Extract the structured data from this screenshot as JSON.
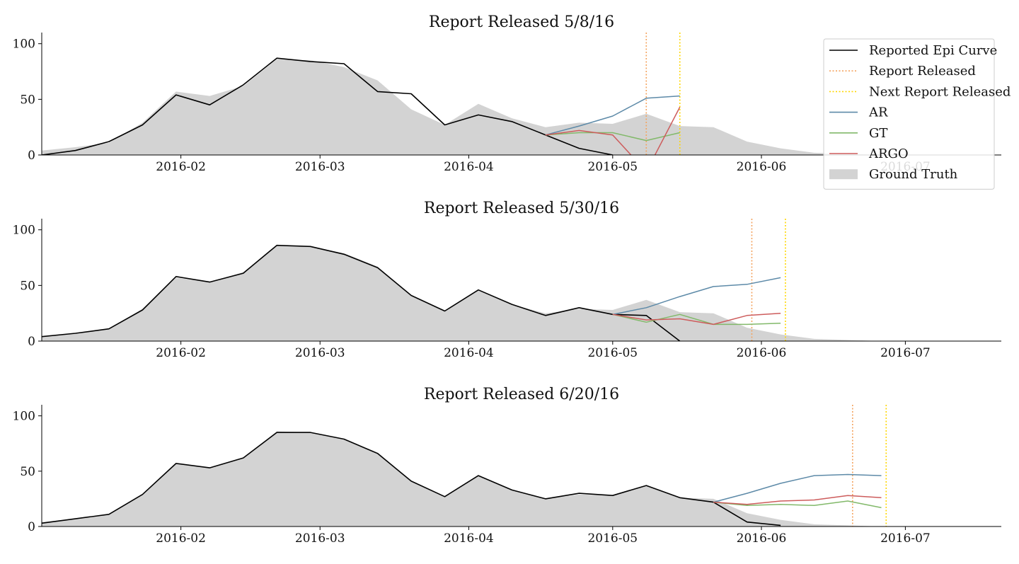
{
  "colors": {
    "epi": "#000000",
    "report": "#f4a460",
    "next": "#ffd700",
    "ar": "#5d8aa8",
    "gt": "#82b96a",
    "argo": "#cd5c5c",
    "truth": "#d3d3d3"
  },
  "legend": {
    "placement": "top-right",
    "items": [
      {
        "key": "epi",
        "label": "Reported Epi Curve",
        "style": "line"
      },
      {
        "key": "report",
        "label": "Report Released",
        "style": "dotted"
      },
      {
        "key": "next",
        "label": "Next Report Released",
        "style": "dotted"
      },
      {
        "key": "ar",
        "label": "AR",
        "style": "line"
      },
      {
        "key": "gt",
        "label": "GT",
        "style": "line"
      },
      {
        "key": "argo",
        "label": "ARGO",
        "style": "line"
      },
      {
        "key": "truth",
        "label": "Ground Truth",
        "style": "patch"
      }
    ]
  },
  "chart_data": [
    {
      "type": "line",
      "title": "Report Released 5/8/16",
      "xlim": [
        "2016-01-03",
        "2016-07-21"
      ],
      "ylim": [
        0,
        110
      ],
      "yticks": [
        0,
        50,
        100
      ],
      "xticks": [
        "2016-02",
        "2016-03",
        "2016-04",
        "2016-05",
        "2016-06",
        "2016-07"
      ],
      "grid": false,
      "report_released": "2016-05-08",
      "next_report_released": "2016-05-15",
      "ground_truth": {
        "x": [
          "2016-01-03",
          "2016-01-10",
          "2016-01-17",
          "2016-01-24",
          "2016-01-31",
          "2016-02-07",
          "2016-02-14",
          "2016-02-21",
          "2016-02-28",
          "2016-03-06",
          "2016-03-13",
          "2016-03-20",
          "2016-03-27",
          "2016-04-03",
          "2016-04-10",
          "2016-04-17",
          "2016-04-24",
          "2016-05-01",
          "2016-05-08",
          "2016-05-15",
          "2016-05-22",
          "2016-05-29",
          "2016-06-05",
          "2016-06-12",
          "2016-06-19",
          "2016-06-26",
          "2016-07-03"
        ],
        "y": [
          4,
          7,
          11,
          29,
          57,
          53,
          62,
          86,
          85,
          79,
          67,
          41,
          27,
          46,
          33,
          25,
          29,
          28,
          37,
          26,
          25,
          12,
          6,
          2,
          1,
          0,
          0
        ]
      },
      "series": [
        {
          "name": "Reported Epi Curve",
          "key": "epi",
          "x": [
            "2016-01-03",
            "2016-01-10",
            "2016-01-17",
            "2016-01-24",
            "2016-01-31",
            "2016-02-07",
            "2016-02-14",
            "2016-02-21",
            "2016-02-28",
            "2016-03-06",
            "2016-03-13",
            "2016-03-20",
            "2016-03-27",
            "2016-04-03",
            "2016-04-10",
            "2016-04-17",
            "2016-04-24",
            "2016-05-01"
          ],
          "y": [
            0,
            4,
            12,
            27,
            54,
            45,
            63,
            87,
            84,
            82,
            57,
            55,
            27,
            36,
            30,
            18,
            6,
            0
          ]
        },
        {
          "name": "AR",
          "key": "ar",
          "x": [
            "2016-04-17",
            "2016-04-24",
            "2016-05-01",
            "2016-05-08",
            "2016-05-15"
          ],
          "y": [
            18,
            26,
            35,
            51,
            53
          ]
        },
        {
          "name": "GT",
          "key": "gt",
          "x": [
            "2016-04-17",
            "2016-04-24",
            "2016-05-01",
            "2016-05-08",
            "2016-05-15"
          ],
          "y": [
            18,
            20,
            20,
            13,
            20
          ]
        },
        {
          "name": "ARGO",
          "key": "argo",
          "x": [
            "2016-04-17",
            "2016-04-24",
            "2016-05-01",
            "2016-05-08",
            "2016-05-15"
          ],
          "y": [
            18,
            22,
            18,
            -15,
            43
          ]
        }
      ]
    },
    {
      "type": "line",
      "title": "Report Released 5/30/16",
      "xlim": [
        "2016-01-03",
        "2016-07-21"
      ],
      "ylim": [
        0,
        110
      ],
      "yticks": [
        0,
        50,
        100
      ],
      "xticks": [
        "2016-02",
        "2016-03",
        "2016-04",
        "2016-05",
        "2016-06",
        "2016-07"
      ],
      "grid": false,
      "report_released": "2016-05-30",
      "next_report_released": "2016-06-06",
      "ground_truth": {
        "x": [
          "2016-01-03",
          "2016-01-10",
          "2016-01-17",
          "2016-01-24",
          "2016-01-31",
          "2016-02-07",
          "2016-02-14",
          "2016-02-21",
          "2016-02-28",
          "2016-03-06",
          "2016-03-13",
          "2016-03-20",
          "2016-03-27",
          "2016-04-03",
          "2016-04-10",
          "2016-04-17",
          "2016-04-24",
          "2016-05-01",
          "2016-05-08",
          "2016-05-15",
          "2016-05-22",
          "2016-05-29",
          "2016-06-05",
          "2016-06-12",
          "2016-06-19",
          "2016-06-26",
          "2016-07-03"
        ],
        "y": [
          4,
          7,
          11,
          29,
          57,
          53,
          62,
          86,
          85,
          79,
          67,
          41,
          27,
          46,
          33,
          25,
          29,
          28,
          37,
          26,
          25,
          12,
          6,
          2,
          1,
          0,
          0
        ]
      },
      "series": [
        {
          "name": "Reported Epi Curve",
          "key": "epi",
          "x": [
            "2016-01-03",
            "2016-01-10",
            "2016-01-17",
            "2016-01-24",
            "2016-01-31",
            "2016-02-07",
            "2016-02-14",
            "2016-02-21",
            "2016-02-28",
            "2016-03-06",
            "2016-03-13",
            "2016-03-20",
            "2016-03-27",
            "2016-04-03",
            "2016-04-10",
            "2016-04-17",
            "2016-04-24",
            "2016-05-01",
            "2016-05-08",
            "2016-05-15"
          ],
          "y": [
            4,
            7,
            11,
            28,
            58,
            53,
            61,
            86,
            85,
            78,
            66,
            41,
            27,
            46,
            33,
            23,
            30,
            24,
            23,
            0
          ]
        },
        {
          "name": "AR",
          "key": "ar",
          "x": [
            "2016-05-01",
            "2016-05-08",
            "2016-05-15",
            "2016-05-22",
            "2016-05-29",
            "2016-06-05"
          ],
          "y": [
            24,
            30,
            40,
            49,
            51,
            57
          ]
        },
        {
          "name": "GT",
          "key": "gt",
          "x": [
            "2016-05-01",
            "2016-05-08",
            "2016-05-15",
            "2016-05-22",
            "2016-05-29",
            "2016-06-05"
          ],
          "y": [
            24,
            17,
            24,
            15,
            15,
            16
          ]
        },
        {
          "name": "ARGO",
          "key": "argo",
          "x": [
            "2016-05-01",
            "2016-05-08",
            "2016-05-15",
            "2016-05-22",
            "2016-05-29",
            "2016-06-05"
          ],
          "y": [
            24,
            19,
            20,
            15,
            23,
            25
          ]
        }
      ]
    },
    {
      "type": "line",
      "title": "Report Released 6/20/16",
      "xlim": [
        "2016-01-03",
        "2016-07-21"
      ],
      "ylim": [
        0,
        110
      ],
      "yticks": [
        0,
        50,
        100
      ],
      "xticks": [
        "2016-02",
        "2016-03",
        "2016-04",
        "2016-05",
        "2016-06",
        "2016-07"
      ],
      "grid": false,
      "report_released": "2016-06-20",
      "next_report_released": "2016-06-27",
      "ground_truth": {
        "x": [
          "2016-01-03",
          "2016-01-10",
          "2016-01-17",
          "2016-01-24",
          "2016-01-31",
          "2016-02-07",
          "2016-02-14",
          "2016-02-21",
          "2016-02-28",
          "2016-03-06",
          "2016-03-13",
          "2016-03-20",
          "2016-03-27",
          "2016-04-03",
          "2016-04-10",
          "2016-04-17",
          "2016-04-24",
          "2016-05-01",
          "2016-05-08",
          "2016-05-15",
          "2016-05-22",
          "2016-05-29",
          "2016-06-05",
          "2016-06-12",
          "2016-06-19",
          "2016-06-26",
          "2016-07-03"
        ],
        "y": [
          4,
          7,
          11,
          29,
          57,
          53,
          62,
          86,
          85,
          79,
          67,
          41,
          27,
          46,
          33,
          25,
          29,
          28,
          37,
          26,
          25,
          12,
          6,
          2,
          1,
          0,
          0
        ]
      },
      "series": [
        {
          "name": "Reported Epi Curve",
          "key": "epi",
          "x": [
            "2016-01-03",
            "2016-01-10",
            "2016-01-17",
            "2016-01-24",
            "2016-01-31",
            "2016-02-07",
            "2016-02-14",
            "2016-02-21",
            "2016-02-28",
            "2016-03-06",
            "2016-03-13",
            "2016-03-20",
            "2016-03-27",
            "2016-04-03",
            "2016-04-10",
            "2016-04-17",
            "2016-04-24",
            "2016-05-01",
            "2016-05-08",
            "2016-05-15",
            "2016-05-22",
            "2016-05-29",
            "2016-06-05"
          ],
          "y": [
            3,
            7,
            11,
            29,
            57,
            53,
            62,
            85,
            85,
            79,
            66,
            41,
            27,
            46,
            33,
            25,
            30,
            28,
            37,
            26,
            22,
            4,
            1
          ]
        },
        {
          "name": "AR",
          "key": "ar",
          "x": [
            "2016-05-22",
            "2016-05-29",
            "2016-06-05",
            "2016-06-12",
            "2016-06-19",
            "2016-06-26"
          ],
          "y": [
            22,
            30,
            39,
            46,
            47,
            46
          ]
        },
        {
          "name": "GT",
          "key": "gt",
          "x": [
            "2016-05-22",
            "2016-05-29",
            "2016-06-05",
            "2016-06-12",
            "2016-06-19",
            "2016-06-26"
          ],
          "y": [
            22,
            19,
            20,
            19,
            23,
            17
          ]
        },
        {
          "name": "ARGO",
          "key": "argo",
          "x": [
            "2016-05-22",
            "2016-05-29",
            "2016-06-05",
            "2016-06-12",
            "2016-06-19",
            "2016-06-26"
          ],
          "y": [
            22,
            20,
            23,
            24,
            28,
            26
          ]
        }
      ]
    }
  ]
}
